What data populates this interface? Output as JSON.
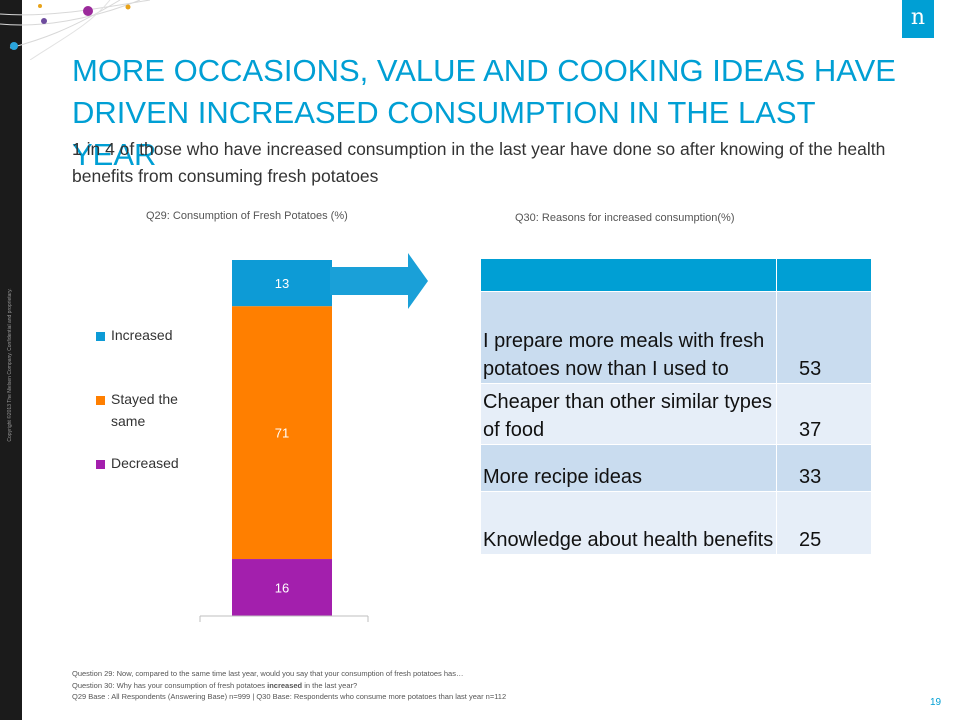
{
  "slide": {
    "logo_text": "n",
    "copyright": "Copyright ©2013 The Nielsen Company. Confidential and proprietary.",
    "title_line1": "More occasions, value and cooking ideas have",
    "title_line2": "driven increased consumption in the last year",
    "subtitle": "1 in 4 of those who have increased consumption in the last year have done so after knowing of the health benefits from consuming fresh potatoes",
    "page_number": "19"
  },
  "colors": {
    "accent": "#009fd4",
    "increased": "#0d9bd6",
    "stayed_the_same": "#ff7f00",
    "decreased": "#a31fad",
    "table_odd": "#c9dcef",
    "table_even": "#e6eef8"
  },
  "chart_data": [
    {
      "type": "bar",
      "stacked": true,
      "title": "Q29: Consumption of Fresh Potatoes (%)",
      "categories": [
        ""
      ],
      "series": [
        {
          "name": "Increased",
          "values": [
            13
          ]
        },
        {
          "name": "Stayed the same",
          "values": [
            71
          ]
        },
        {
          "name": "Decreased",
          "values": [
            16
          ]
        }
      ],
      "ylim": [
        0,
        100
      ],
      "legend_position": "left",
      "grid": false
    },
    {
      "type": "table",
      "title": "Q30: Reasons for increased consumption(%)",
      "columns": [
        "",
        ""
      ],
      "rows": [
        {
          "label": "I prepare more meals with fresh potatoes now than I used to",
          "value": 53
        },
        {
          "label": "Cheaper than other similar types of food",
          "value": 37
        },
        {
          "label": "More recipe ideas",
          "value": 33
        },
        {
          "label": "Knowledge about health benefits",
          "value": 25
        }
      ]
    }
  ],
  "footnotes": {
    "q29": "Question 29: Now, compared to the same time last year, would you say that your consumption of fresh potatoes has…",
    "q30_prefix": "Question 30: Why has your consumption of fresh potatoes ",
    "q30_bold": "increased",
    "q30_suffix": " in the last year?",
    "base": "Q29 Base : All Respondents (Answering Base) n=999  |  Q30 Base: Respondents who consume more potatoes than last year  n=112"
  }
}
